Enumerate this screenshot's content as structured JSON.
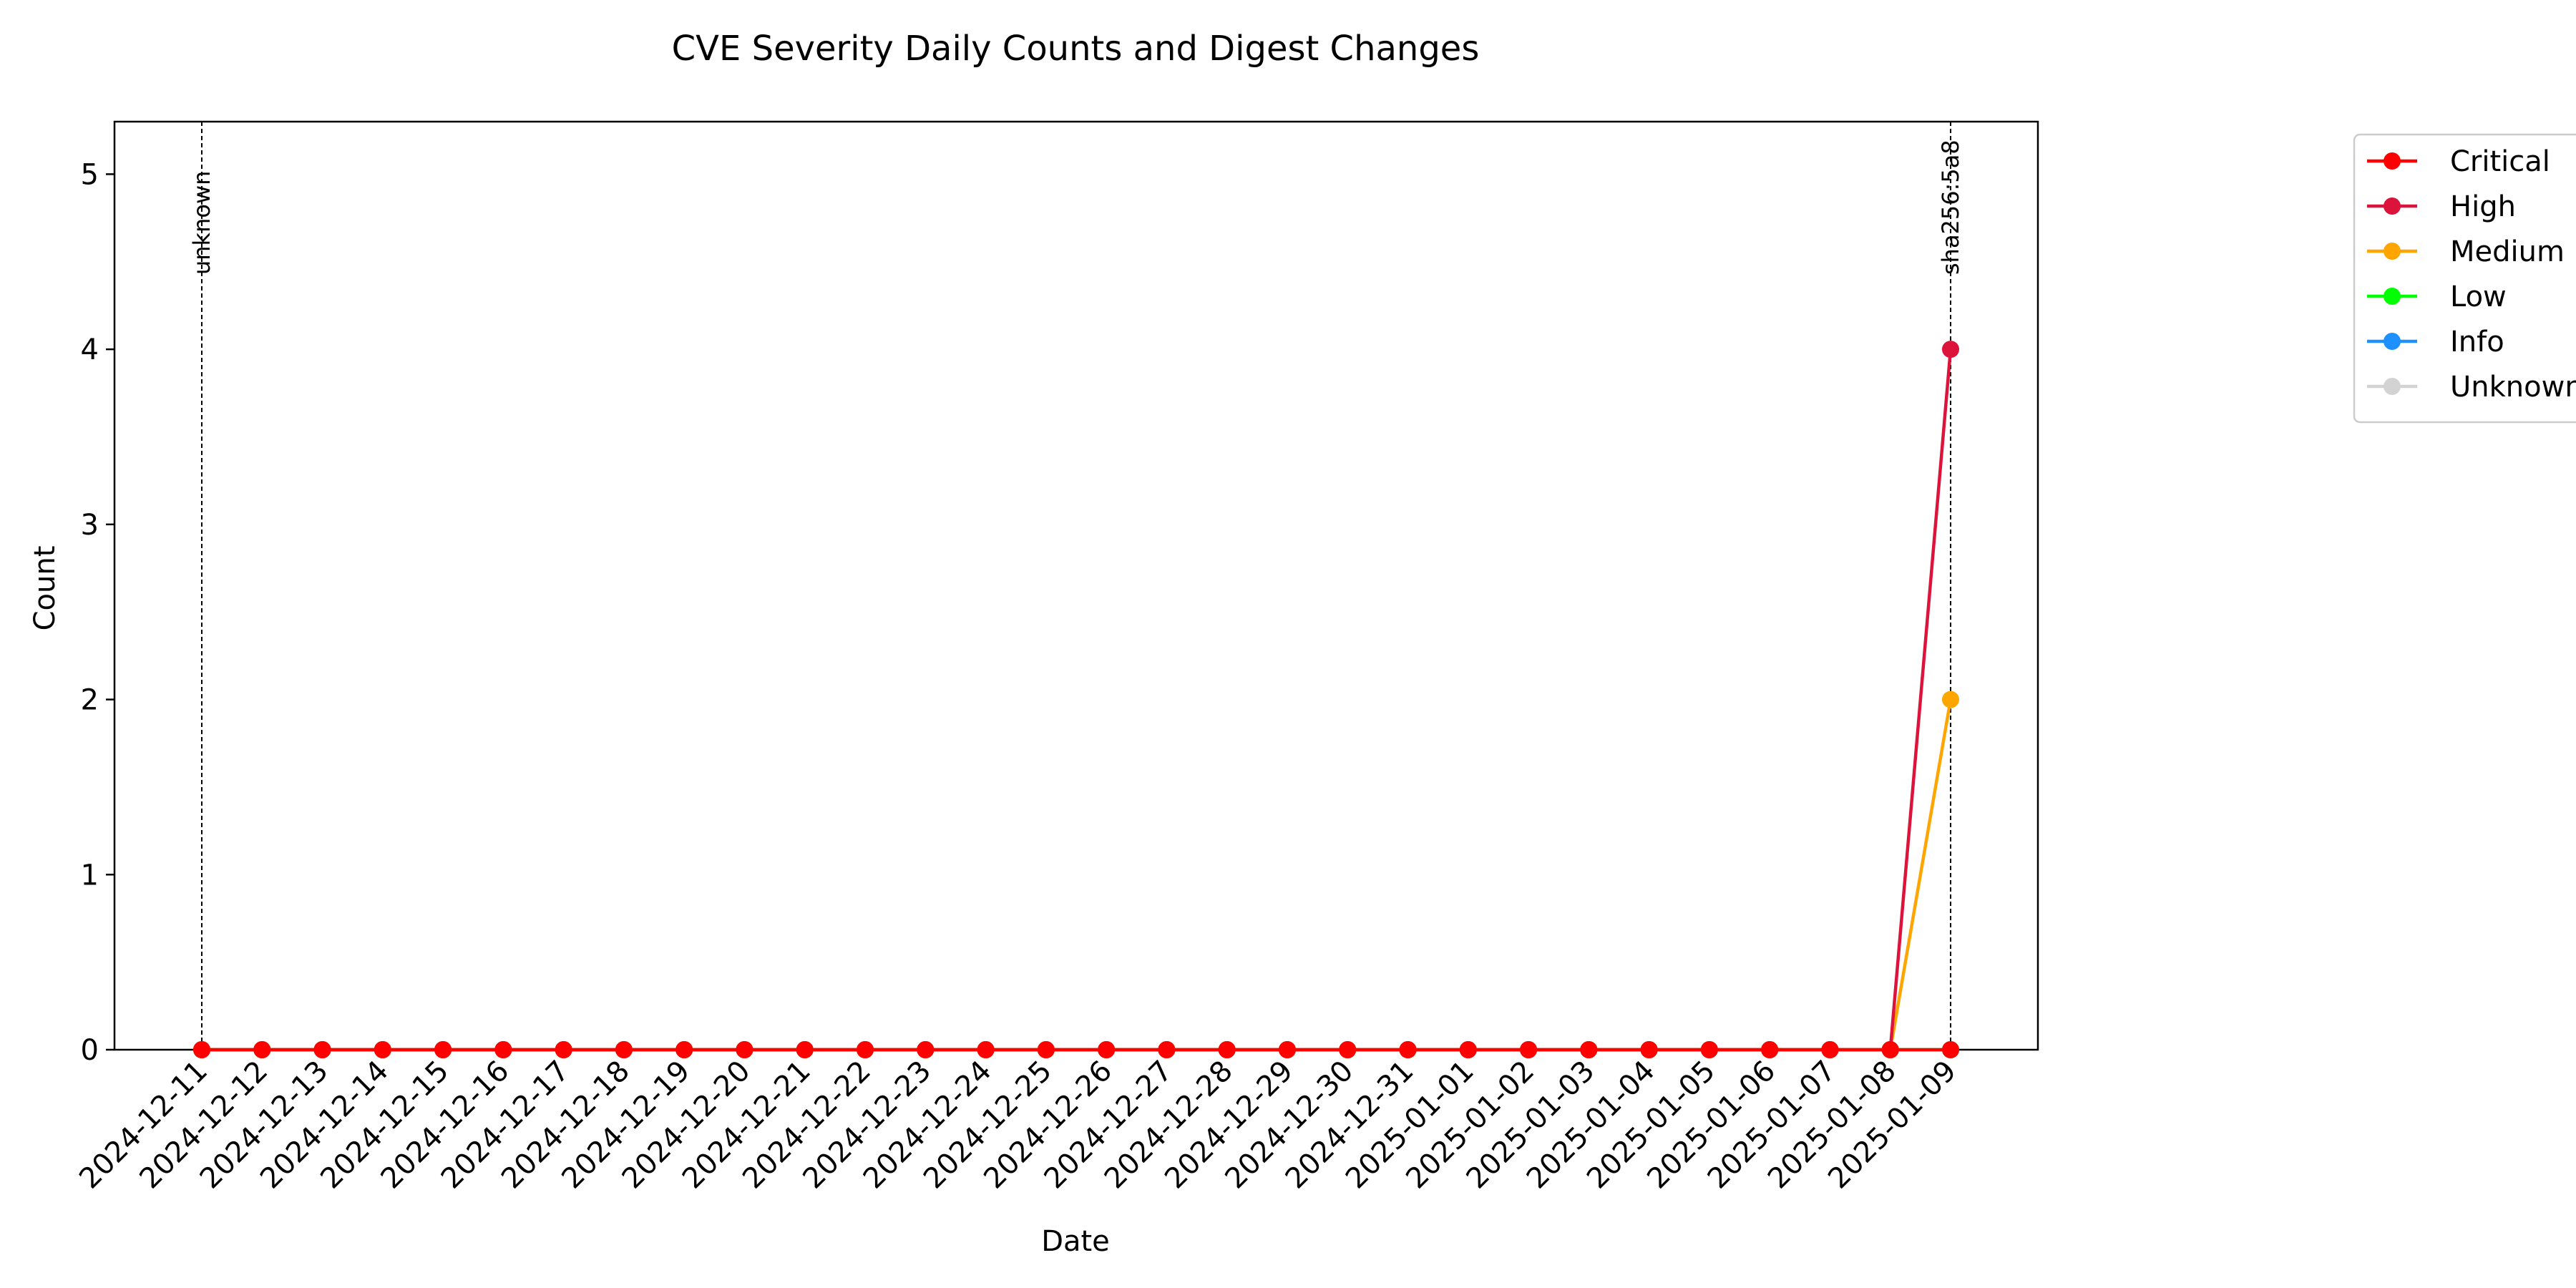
{
  "chart_data": {
    "type": "line",
    "title": "CVE Severity Daily Counts and Digest Changes",
    "xlabel": "Date",
    "ylabel": "Count",
    "ylim": [
      0,
      5.3
    ],
    "y_ticks": [
      0,
      1,
      2,
      3,
      4,
      5
    ],
    "grid": false,
    "legend_position": "upper-right, outside the plot",
    "x": [
      "2024-12-11",
      "2024-12-12",
      "2024-12-13",
      "2024-12-14",
      "2024-12-15",
      "2024-12-16",
      "2024-12-17",
      "2024-12-18",
      "2024-12-19",
      "2024-12-20",
      "2024-12-21",
      "2024-12-22",
      "2024-12-23",
      "2024-12-24",
      "2024-12-25",
      "2024-12-26",
      "2024-12-27",
      "2024-12-28",
      "2024-12-29",
      "2024-12-30",
      "2024-12-31",
      "2025-01-01",
      "2025-01-02",
      "2025-01-03",
      "2025-01-04",
      "2025-01-05",
      "2025-01-06",
      "2025-01-07",
      "2025-01-08",
      "2025-01-09"
    ],
    "series": [
      {
        "name": "Critical",
        "color": "#ff0000",
        "values": [
          0,
          0,
          0,
          0,
          0,
          0,
          0,
          0,
          0,
          0,
          0,
          0,
          0,
          0,
          0,
          0,
          0,
          0,
          0,
          0,
          0,
          0,
          0,
          0,
          0,
          0,
          0,
          0,
          0,
          0
        ]
      },
      {
        "name": "High",
        "color": "#dc143c",
        "values": [
          0,
          0,
          0,
          0,
          0,
          0,
          0,
          0,
          0,
          0,
          0,
          0,
          0,
          0,
          0,
          0,
          0,
          0,
          0,
          0,
          0,
          0,
          0,
          0,
          0,
          0,
          0,
          0,
          0,
          4
        ]
      },
      {
        "name": "Medium",
        "color": "#ffa500",
        "values": [
          0,
          0,
          0,
          0,
          0,
          0,
          0,
          0,
          0,
          0,
          0,
          0,
          0,
          0,
          0,
          0,
          0,
          0,
          0,
          0,
          0,
          0,
          0,
          0,
          0,
          0,
          0,
          0,
          0,
          2
        ]
      },
      {
        "name": "Low",
        "color": "#00ff00",
        "values": [
          0,
          0,
          0,
          0,
          0,
          0,
          0,
          0,
          0,
          0,
          0,
          0,
          0,
          0,
          0,
          0,
          0,
          0,
          0,
          0,
          0,
          0,
          0,
          0,
          0,
          0,
          0,
          0,
          0,
          0
        ]
      },
      {
        "name": "Info",
        "color": "#1e90ff",
        "values": [
          0,
          0,
          0,
          0,
          0,
          0,
          0,
          0,
          0,
          0,
          0,
          0,
          0,
          0,
          0,
          0,
          0,
          0,
          0,
          0,
          0,
          0,
          0,
          0,
          0,
          0,
          0,
          0,
          0,
          0
        ]
      },
      {
        "name": "Unknown",
        "color": "#d3d3d3",
        "values": [
          0,
          0,
          0,
          0,
          0,
          0,
          0,
          0,
          0,
          0,
          0,
          0,
          0,
          0,
          0,
          0,
          0,
          0,
          0,
          0,
          0,
          0,
          0,
          0,
          0,
          0,
          0,
          0,
          0,
          0
        ]
      }
    ],
    "annotations": [
      {
        "x": "2024-12-11",
        "label": "unknown"
      },
      {
        "x": "2025-01-09",
        "label": "sha256:5a8"
      }
    ]
  }
}
